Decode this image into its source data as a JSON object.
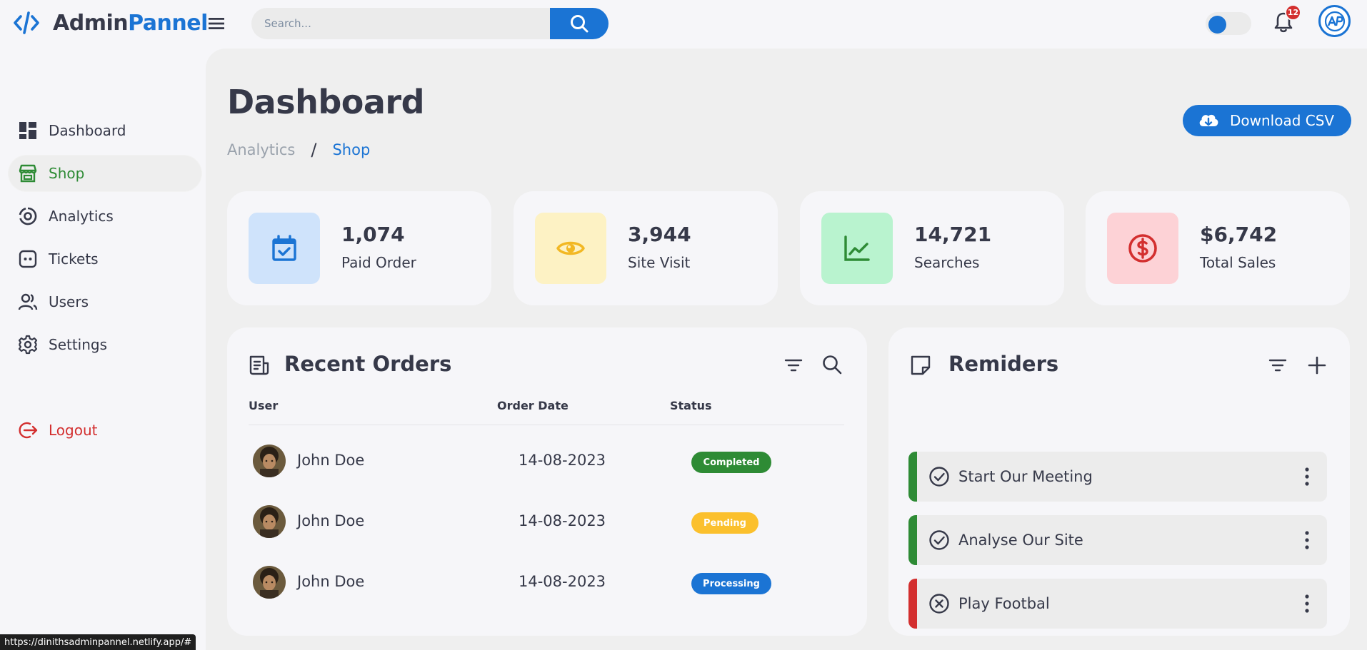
{
  "brand": {
    "part1": "Admin",
    "part2": "Pannel"
  },
  "search": {
    "placeholder": "Search..."
  },
  "notifications": {
    "count": "12"
  },
  "colors": {
    "accent": "#1b74d4",
    "green": "#2e8b35",
    "red": "#d32f2f",
    "yellow": "#fbc02d"
  },
  "sidebar": {
    "items": [
      {
        "label": "Dashboard",
        "icon": "dashboard-icon"
      },
      {
        "label": "Shop",
        "icon": "store-icon",
        "active": true
      },
      {
        "label": "Analytics",
        "icon": "analytics-icon"
      },
      {
        "label": "Tickets",
        "icon": "ticket-icon"
      },
      {
        "label": "Users",
        "icon": "users-icon"
      },
      {
        "label": "Settings",
        "icon": "gear-icon"
      }
    ],
    "logout": "Logout"
  },
  "header": {
    "title": "Dashboard",
    "breadcrumb": [
      "Analytics",
      "/",
      "Shop"
    ],
    "download_label": "Download CSV"
  },
  "stats": [
    {
      "value": "1,074",
      "label": "Paid Order",
      "icon": "calendar-check-icon"
    },
    {
      "value": "3,944",
      "label": "Site Visit",
      "icon": "eye-icon"
    },
    {
      "value": "14,721",
      "label": "Searches",
      "icon": "line-chart-icon"
    },
    {
      "value": "$6,742",
      "label": "Total Sales",
      "icon": "dollar-icon"
    }
  ],
  "orders": {
    "title": "Recent Orders",
    "columns": [
      "User",
      "Order Date",
      "Status"
    ],
    "rows": [
      {
        "user": "John Doe",
        "date": "14-08-2023",
        "status": "Completed"
      },
      {
        "user": "John Doe",
        "date": "14-08-2023",
        "status": "Pending"
      },
      {
        "user": "John Doe",
        "date": "14-08-2023",
        "status": "Processing"
      }
    ]
  },
  "reminders": {
    "title": "Remiders",
    "items": [
      {
        "text": "Start Our Meeting",
        "state": "done"
      },
      {
        "text": "Analyse Our Site",
        "state": "done"
      },
      {
        "text": "Play Footbal",
        "state": "cancelled"
      }
    ]
  },
  "status_bar": {
    "url": "https://dinithsadminpannel.netlify.app/#"
  }
}
